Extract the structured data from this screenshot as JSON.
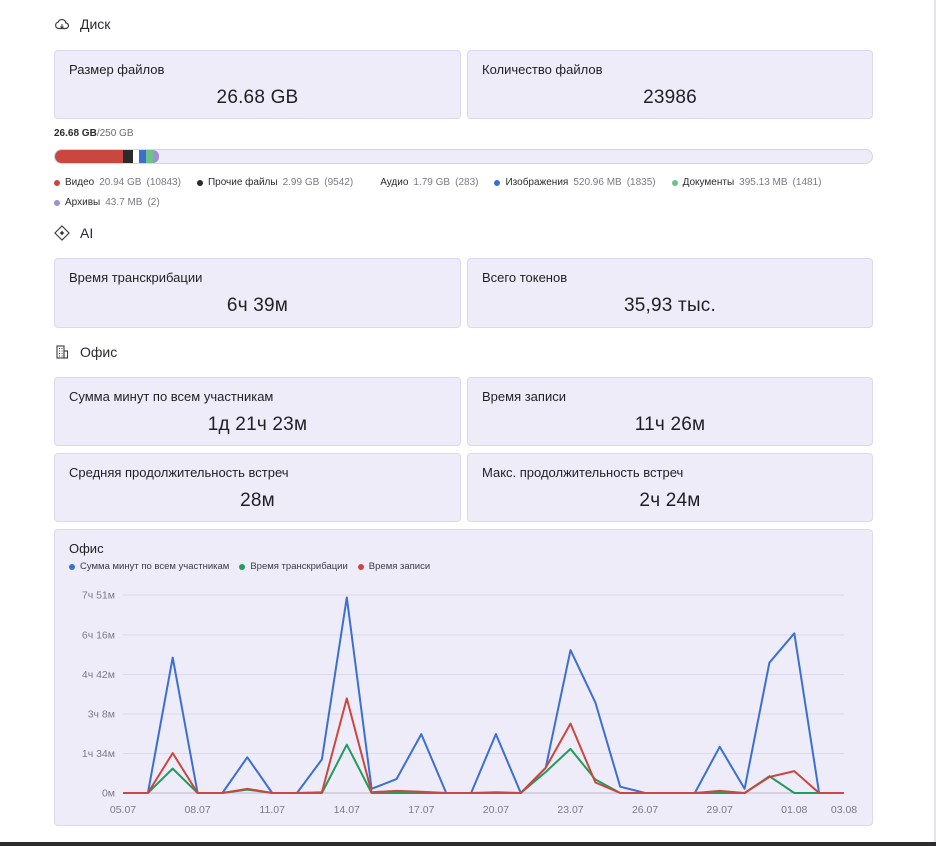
{
  "disk": {
    "title": "Диск",
    "icon": "cloud-icon",
    "size_card": {
      "title": "Размер файлов",
      "value": "26.68 GB"
    },
    "count_card": {
      "title": "Количество файлов",
      "value": "23986"
    },
    "usage": {
      "used": "26.68 GB",
      "total": "/250 GB"
    },
    "segments": [
      {
        "name": "Видео",
        "size": "20.94 GB",
        "count": "(10843)",
        "color": "#c9473f",
        "fraction": 0.0838
      },
      {
        "name": "Прочие файлы",
        "size": "2.99 GB",
        "count": "(9542)",
        "color": "#2b2b2b",
        "fraction": 0.012
      },
      {
        "name": "Аудио",
        "size": "1.79 GB",
        "count": "(283)",
        "color": "#ffffff",
        "fraction": 0.0072
      },
      {
        "name": "Изображения",
        "size": "520.96 MB",
        "count": "(1835)",
        "color": "#3a6fd0",
        "fraction": 0.009
      },
      {
        "name": "Документы",
        "size": "395.13 MB",
        "count": "(1481)",
        "color": "#6fc18a",
        "fraction": 0.008
      },
      {
        "name": "Архивы",
        "size": "43.7 MB",
        "count": "(2)",
        "color": "#9b8fd8",
        "fraction": 0.007
      }
    ]
  },
  "ai": {
    "title": "AI",
    "icon": "ai-sparkle-icon",
    "transcription_card": {
      "title": "Время транскрибации",
      "value": "6ч 39м"
    },
    "tokens_card": {
      "title": "Всего токенов",
      "value": "35,93 тыс."
    }
  },
  "office": {
    "title": "Офис",
    "icon": "building-icon",
    "minutes_card": {
      "title": "Сумма минут по всем участникам",
      "value": "1д 21ч 23м"
    },
    "record_card": {
      "title": "Время записи",
      "value": "11ч 26м"
    },
    "avg_card": {
      "title": "Средняя продолжительность встреч",
      "value": "28м"
    },
    "max_card": {
      "title": "Макс. продолжительность встреч",
      "value": "2ч 24м"
    }
  },
  "chart_data": {
    "type": "line",
    "title": "Офис",
    "y_tick_labels": [
      "0м",
      "1ч 34м",
      "3ч 8м",
      "4ч 42м",
      "6ч 16м",
      "7ч 51м"
    ],
    "y_tick_minutes": [
      0,
      94,
      188,
      282,
      376,
      471
    ],
    "ylim": [
      0,
      471
    ],
    "x_tick_labels": [
      "05.07",
      "08.07",
      "11.07",
      "14.07",
      "17.07",
      "20.07",
      "23.07",
      "26.07",
      "29.07",
      "01.08",
      "03.08"
    ],
    "x_tick_index": [
      0,
      3,
      6,
      9,
      12,
      15,
      18,
      21,
      24,
      27,
      29
    ],
    "x": [
      "05.07",
      "06.07",
      "07.07",
      "08.07",
      "09.07",
      "10.07",
      "11.07",
      "12.07",
      "13.07",
      "14.07",
      "15.07",
      "16.07",
      "17.07",
      "18.07",
      "19.07",
      "20.07",
      "21.07",
      "22.07",
      "23.07",
      "24.07",
      "25.07",
      "26.07",
      "27.07",
      "28.07",
      "29.07",
      "30.07",
      "31.07",
      "01.08",
      "02.08",
      "03.08"
    ],
    "grid": true,
    "legend": "top-left",
    "series": [
      {
        "name": "Сумма минут по всем участникам",
        "color": "#3b6fd1",
        "values": [
          0,
          0,
          322,
          0,
          0,
          85,
          0,
          0,
          80,
          465,
          10,
          33,
          140,
          0,
          0,
          140,
          0,
          60,
          340,
          215,
          15,
          0,
          0,
          0,
          110,
          10,
          310,
          380,
          0,
          0
        ]
      },
      {
        "name": "Время транскрибации",
        "color": "#1f9d5a",
        "values": [
          0,
          0,
          58,
          0,
          0,
          8,
          0,
          0,
          0,
          115,
          0,
          0,
          0,
          0,
          0,
          0,
          0,
          50,
          105,
          32,
          0,
          0,
          0,
          0,
          0,
          0,
          40,
          0,
          0,
          0
        ]
      },
      {
        "name": "Время записи",
        "color": "#c9473f",
        "values": [
          0,
          0,
          95,
          0,
          0,
          10,
          0,
          0,
          2,
          225,
          2,
          5,
          3,
          0,
          0,
          2,
          0,
          60,
          165,
          25,
          0,
          0,
          0,
          0,
          5,
          0,
          38,
          52,
          0,
          0
        ]
      }
    ]
  }
}
